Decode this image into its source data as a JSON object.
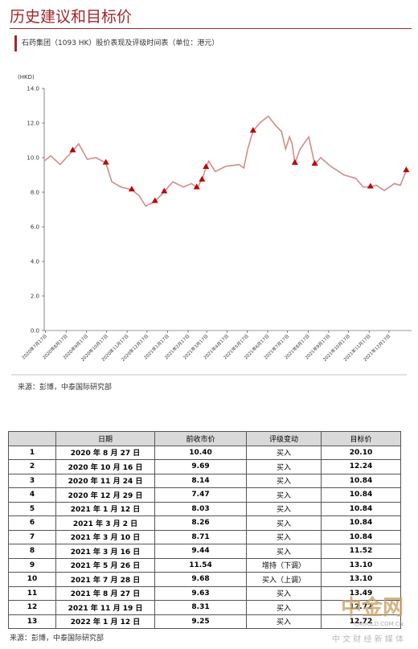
{
  "header": {
    "title": "历史建议和目标价",
    "subtitle": "石药集团（1093 HK）股价表现及评级时间表（单位：港元）"
  },
  "chart_data": {
    "type": "line",
    "y_label": "(HKD)",
    "color": "#d28c8c",
    "marker_color": "#c00000",
    "x": [
      "2020-07-15",
      "2020-07-25",
      "2020-08-08",
      "2020-08-27",
      "2020-09-05",
      "2020-09-18",
      "2020-10-01",
      "2020-10-16",
      "2020-10-25",
      "2020-11-08",
      "2020-11-24",
      "2020-12-05",
      "2020-12-15",
      "2020-12-29",
      "2021-01-12",
      "2021-01-25",
      "2021-02-10",
      "2021-02-22",
      "2021-03-02",
      "2021-03-10",
      "2021-03-16",
      "2021-03-20",
      "2021-03-30",
      "2021-04-15",
      "2021-05-05",
      "2021-05-12",
      "2021-05-18",
      "2021-05-26",
      "2021-06-05",
      "2021-06-18",
      "2021-06-28",
      "2021-07-08",
      "2021-07-14",
      "2021-07-20",
      "2021-07-24",
      "2021-07-28",
      "2021-08-05",
      "2021-08-18",
      "2021-08-22",
      "2021-08-27",
      "2021-09-05",
      "2021-09-20",
      "2021-10-10",
      "2021-10-28",
      "2021-11-08",
      "2021-11-19",
      "2021-11-28",
      "2021-12-10",
      "2021-12-25",
      "2022-01-03",
      "2022-01-12"
    ],
    "values": [
      9.8,
      10.1,
      9.6,
      10.4,
      10.8,
      9.9,
      10.0,
      9.69,
      8.6,
      8.3,
      8.14,
      7.8,
      7.2,
      7.47,
      8.03,
      8.6,
      8.3,
      8.5,
      8.26,
      8.71,
      9.44,
      9.8,
      9.2,
      9.5,
      9.6,
      9.4,
      10.5,
      11.54,
      12.0,
      12.4,
      11.9,
      11.5,
      10.5,
      11.2,
      10.8,
      9.68,
      10.5,
      11.2,
      10.5,
      9.63,
      10.0,
      9.5,
      9.0,
      8.8,
      8.3,
      8.31,
      8.4,
      8.1,
      8.5,
      8.4,
      9.25
    ],
    "xlim": [
      "2020-07-15",
      "2022-01-20"
    ],
    "xticks": [
      {
        "value": "2020-07-17",
        "label": "2020年7月17日"
      },
      {
        "value": "2020-08-17",
        "label": "2020年8月17日"
      },
      {
        "value": "2020-09-17",
        "label": "2020年9月17日"
      },
      {
        "value": "2020-10-17",
        "label": "2020年10月17日"
      },
      {
        "value": "2020-11-17",
        "label": "2020年11月17日"
      },
      {
        "value": "2020-12-17",
        "label": "2020年12月17日"
      },
      {
        "value": "2021-01-17",
        "label": "2021年1月17日"
      },
      {
        "value": "2021-02-17",
        "label": "2021年2月17日"
      },
      {
        "value": "2021-03-17",
        "label": "2021年3月17日"
      },
      {
        "value": "2021-04-17",
        "label": "2021年4月17日"
      },
      {
        "value": "2021-05-17",
        "label": "2021年5月17日"
      },
      {
        "value": "2021-06-17",
        "label": "2021年6月17日"
      },
      {
        "value": "2021-07-17",
        "label": "2021年7月17日"
      },
      {
        "value": "2021-08-17",
        "label": "2021年8月17日"
      },
      {
        "value": "2021-09-17",
        "label": "2021年9月17日"
      },
      {
        "value": "2021-10-17",
        "label": "2021年10月17日"
      },
      {
        "value": "2021-11-17",
        "label": "2021年11月17日"
      },
      {
        "value": "2021-12-17",
        "label": "2021年12月17日"
      }
    ],
    "ylim": [
      0,
      14
    ],
    "yticks": [
      {
        "value": 0,
        "label": "0.0"
      },
      {
        "value": 2,
        "label": "2.0"
      },
      {
        "value": 4,
        "label": "4.0"
      },
      {
        "value": 6,
        "label": "6.0"
      },
      {
        "value": 8,
        "label": "8.0"
      },
      {
        "value": 10,
        "label": "10.0"
      },
      {
        "value": 12,
        "label": "12.0"
      },
      {
        "value": 14,
        "label": "14.0"
      }
    ]
  },
  "source1": "来源：彭博，中泰国际研究部",
  "table": {
    "header": [
      "",
      "日期",
      "前收市价",
      "评级变动",
      "目标价"
    ],
    "rows": [
      [
        "1",
        "2020 年 8 月 27 日",
        "10.40",
        "买入",
        "20.10"
      ],
      [
        "2",
        "2020 年 10 月 16 日",
        "9.69",
        "买入",
        "12.24"
      ],
      [
        "3",
        "2020 年 11 月 24 日",
        "8.14",
        "买入",
        "10.84"
      ],
      [
        "4",
        "2020 年 12 月 29 日",
        "7.47",
        "买入",
        "10.84"
      ],
      [
        "5",
        "2021 年 1 月 12 日",
        "8.03",
        "买入",
        "10.84"
      ],
      [
        "6",
        "2021 年 3 月 2 日",
        "8.26",
        "买入",
        "10.84"
      ],
      [
        "7",
        "2021 年 3 月 10 日",
        "8.71",
        "买入",
        "10.84"
      ],
      [
        "8",
        "2021 年 3 月 16 日",
        "9.44",
        "买入",
        "11.52"
      ],
      [
        "9",
        "2021 年 5 月 26 日",
        "11.54",
        "增持（下调）",
        "13.10"
      ],
      [
        "10",
        "2021 年 7 月 28 日",
        "9.68",
        "买入（上调）",
        "13.10"
      ],
      [
        "11",
        "2021 年 8 月 27 日",
        "9.63",
        "买入",
        "13.49"
      ],
      [
        "12",
        "2021 年 11 月 19 日",
        "8.31",
        "买入",
        "12.72"
      ],
      [
        "13",
        "2022 年 1 月 12 日",
        "9.25",
        "买入",
        "12.72"
      ]
    ]
  },
  "source2": "来源：彭博，中泰国际研究部",
  "watermark": {
    "name": "中金网",
    "url": "CNGOLD.COM.CN",
    "slogan": "中 文 财 经 新 媒 体"
  }
}
